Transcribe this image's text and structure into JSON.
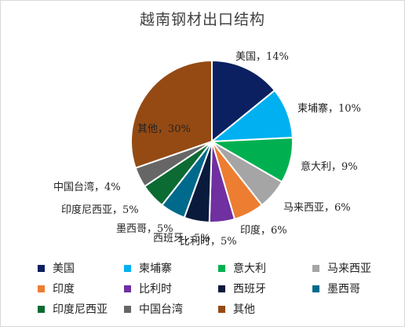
{
  "chart_data": {
    "type": "pie",
    "title": "越南钢材出口结构",
    "categories": [
      "美国",
      "柬埔寨",
      "意大利",
      "马来西亚",
      "印度",
      "比利时",
      "西班牙",
      "墨西哥",
      "印度尼西亚",
      "中国台湾",
      "其他"
    ],
    "values": [
      14,
      10,
      9,
      6,
      6,
      5,
      5,
      5,
      5,
      4,
      30
    ],
    "unit": "%",
    "slice_labels": [
      "美国，14%",
      "柬埔寨，10%",
      "意大利，9%",
      "马来西亚，6%",
      "印度，6%",
      "比利时，5%",
      "西班牙，5%",
      "墨西哥，5%",
      "印度尼西亚，5%",
      "中国台湾，4%",
      "其他，30%"
    ],
    "colors": [
      "#0b2060",
      "#00b0f0",
      "#00b050",
      "#a5a5a5",
      "#ed7d31",
      "#7030a0",
      "#0a1a3c",
      "#006a8c",
      "#0b6b33",
      "#666666",
      "#954a14"
    ],
    "legend_position": "bottom"
  }
}
